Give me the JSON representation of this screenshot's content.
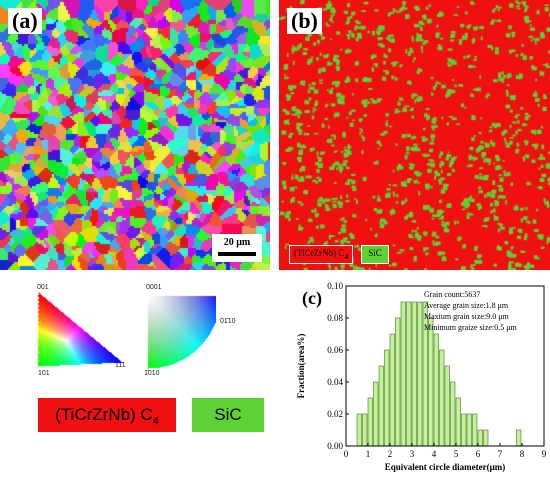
{
  "panel_a": {
    "label": "(a)",
    "scale_bar": "20 μm"
  },
  "panel_b": {
    "label": "(b)",
    "legend": {
      "phase": "(TiCrZrNb) C",
      "phase_sub": "4",
      "sic": "SiC"
    }
  },
  "ipf_cubic": {
    "top": "001",
    "bottom_left": "101",
    "bottom_right": "111"
  },
  "ipf_hex": {
    "top": "0001",
    "right": "01̄10",
    "bottom_left": "1̄010"
  },
  "big_legend": {
    "phase": "(TiCrZrNb) C",
    "phase_sub": "4",
    "sic": "SiC"
  },
  "colors": {
    "phase": "#f01010",
    "sic": "#5ed134",
    "bar_fill": "#c6f09a",
    "bar_edge": "#3c7a24"
  },
  "chart_data": {
    "type": "bar",
    "label": "(c)",
    "xlabel": "Equivalent circle diameter(μm)",
    "ylabel": "Fraction(area%)",
    "xlim": [
      0,
      9
    ],
    "ylim": [
      0,
      0.1
    ],
    "xticks": [
      "0",
      "1",
      "2",
      "3",
      "4",
      "5",
      "6",
      "7",
      "8",
      "9"
    ],
    "yticks": [
      "0.00",
      "0.02",
      "0.04",
      "0.06",
      "0.08",
      "0.10"
    ],
    "bin_width": 0.25,
    "x": [
      0.625,
      0.875,
      1.125,
      1.375,
      1.625,
      1.875,
      2.125,
      2.375,
      2.625,
      2.875,
      3.125,
      3.375,
      3.625,
      3.875,
      4.125,
      4.375,
      4.625,
      4.875,
      5.125,
      5.375,
      5.625,
      5.875,
      6.125,
      6.375,
      7.875
    ],
    "values": [
      0.02,
      0.02,
      0.03,
      0.04,
      0.05,
      0.06,
      0.07,
      0.08,
      0.09,
      0.09,
      0.09,
      0.09,
      0.09,
      0.08,
      0.07,
      0.06,
      0.05,
      0.04,
      0.03,
      0.02,
      0.02,
      0.02,
      0.01,
      0.01,
      0.01
    ],
    "annotations": [
      "Grain count:5637",
      "Average grain size:1.8 μm",
      "Maxium grain size:9.0 μm",
      "Minimum graize size:0.5 μm"
    ]
  }
}
